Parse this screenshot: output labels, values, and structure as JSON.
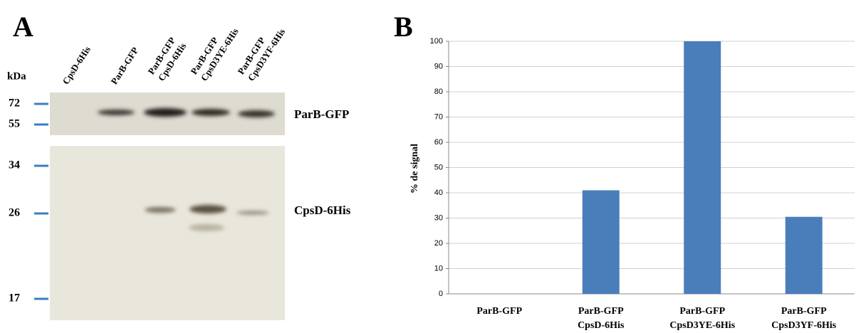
{
  "panel_a": {
    "letter": "A",
    "unit": "kDa",
    "lanes": [
      [
        "CpsD-6His"
      ],
      [
        "ParB-GFP"
      ],
      [
        "ParB-GFP",
        "CpsD-6His"
      ],
      [
        "ParB-GFP",
        "CpsD3YE-6His"
      ],
      [
        "ParB-GFP",
        "CpsD3YF-6His"
      ]
    ],
    "markers": [
      "72",
      "55",
      "34",
      "26",
      "17"
    ],
    "band_labels": [
      "ParB-GFP",
      "CpsD-6His"
    ]
  },
  "chart_data": {
    "type": "bar",
    "letter": "B",
    "y_label": "% de signal",
    "categories": [
      [
        "ParB-GFP"
      ],
      [
        "ParB-GFP",
        "CpsD-6His"
      ],
      [
        "ParB-GFP",
        "CpsD3YE-6His"
      ],
      [
        "ParB-GFP",
        "CpsD3YF-6His"
      ]
    ],
    "values": [
      0,
      41,
      100,
      30.5
    ],
    "color": "#4a7ebb",
    "ylim": [
      0,
      100
    ],
    "yticks": [
      0,
      10,
      20,
      30,
      40,
      50,
      60,
      70,
      80,
      90,
      100
    ],
    "grid": true
  }
}
